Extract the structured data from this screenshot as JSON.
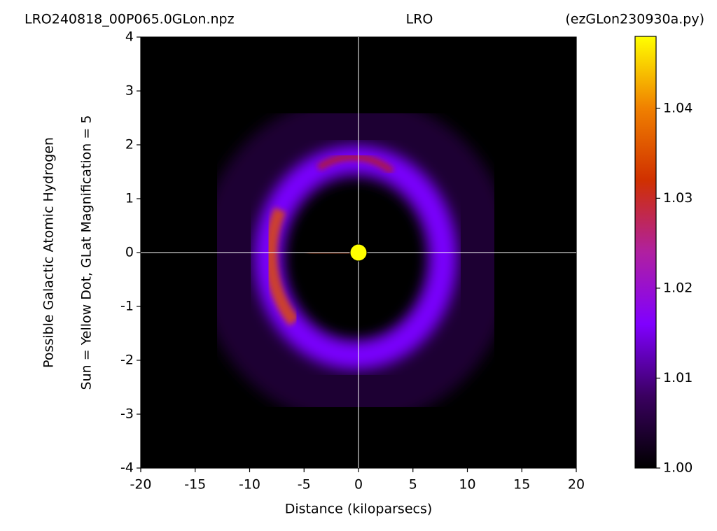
{
  "chart_data": {
    "type": "heatmap",
    "title_left": "LRO240818_00P065.0GLon.npz",
    "title_center": "LRO",
    "title_right": "(ezGLon230930a.py)",
    "xlabel": "Distance (kiloparsecs)",
    "ylabel": [
      "Possible Galactic Atomic Hydrogen",
      "Sun = Yellow Dot, GLat Magnification = 5"
    ],
    "xlim": [
      -20,
      20
    ],
    "xticks": [
      -20,
      -15,
      -10,
      -5,
      0,
      5,
      10,
      15,
      20
    ],
    "ylim": [
      -4,
      4
    ],
    "yticks": [
      -4,
      -3,
      -2,
      -1,
      0,
      1,
      2,
      3,
      4
    ],
    "sun": {
      "x": 0,
      "y": 0,
      "color": "#ffff00"
    },
    "crosshair_color": "#ffffff",
    "colorbar": {
      "clim": [
        1.0,
        1.048
      ],
      "ticks": [
        {
          "value": 1.0,
          "label": "1.00"
        },
        1.01,
        1.02,
        1.03,
        1.04
      ],
      "colormap": [
        "#000000",
        "#3a0060",
        "#8000ff",
        "#b020a0",
        "#d03000",
        "#f08000",
        "#ffff00"
      ]
    }
  }
}
